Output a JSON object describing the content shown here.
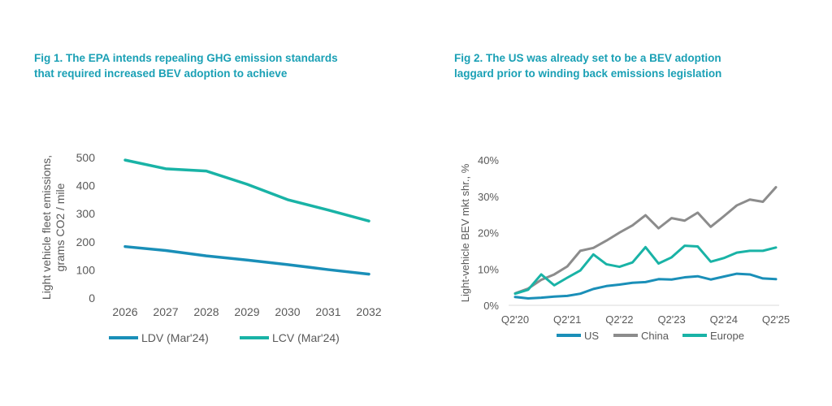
{
  "fig1": {
    "title_line1": "Fig 1. The EPA intends repealing GHG emission standards",
    "title_line2": "that required increased BEV adoption to achieve"
  },
  "fig2": {
    "title_line1": "Fig 2. The US was already set to be a BEV adoption",
    "title_line2": "laggard prior to winding back emissions legislation"
  },
  "chart_data": [
    {
      "type": "line",
      "categories": [
        "2026",
        "2027",
        "2028",
        "2029",
        "2030",
        "2031",
        "2032"
      ],
      "series": [
        {
          "name": "LDV (Mar'24)",
          "color": "#1a8fb8",
          "values": [
            183,
            169,
            150,
            135,
            119,
            101,
            85
          ]
        },
        {
          "name": "LCV (Mar'24)",
          "color": "#19b3a6",
          "values": [
            491,
            460,
            452,
            405,
            350,
            313,
            274
          ]
        }
      ],
      "ylabel_line1": "Light vehicle fleet emissions,",
      "ylabel_line2": "grams CO2 / mile",
      "yticks": [
        "0",
        "100",
        "200",
        "300",
        "400",
        "500"
      ],
      "ylim": [
        0,
        500
      ],
      "grid": false,
      "legend": "bottom"
    },
    {
      "type": "line",
      "xticks": [
        "Q2'20",
        "Q2'21",
        "Q2'22",
        "Q2'23",
        "Q2'24",
        "Q2'25"
      ],
      "x_count": 21,
      "series": [
        {
          "name": "US",
          "color": "#1a8fb8",
          "values": [
            2.3,
            1.9,
            2.1,
            2.4,
            2.6,
            3.2,
            4.5,
            5.3,
            5.7,
            6.2,
            6.4,
            7.2,
            7.1,
            7.7,
            8.0,
            7.1,
            7.9,
            8.7,
            8.5,
            7.4,
            7.2
          ]
        },
        {
          "name": "China",
          "color": "#8c8c8c",
          "values": [
            3.3,
            4.6,
            7.0,
            8.5,
            10.7,
            15.0,
            15.8,
            17.8,
            20.0,
            22.0,
            24.8,
            21.2,
            24.0,
            23.3,
            25.5,
            21.6,
            24.5,
            27.5,
            29.1,
            28.5,
            32.5
          ]
        },
        {
          "name": "Europe",
          "color": "#19b3a6",
          "values": [
            3.2,
            4.3,
            8.5,
            5.5,
            7.6,
            9.6,
            14.0,
            11.3,
            10.6,
            11.8,
            16.0,
            11.5,
            13.2,
            16.4,
            16.2,
            12.0,
            13.0,
            14.5,
            15.0,
            15.0,
            15.9
          ]
        }
      ],
      "ylabel": "Light-vehicle BEV mkt shr., %",
      "yticks": [
        "0%",
        "10%",
        "20%",
        "30%",
        "40%"
      ],
      "ylim": [
        0,
        40
      ],
      "grid": false,
      "legend": "bottom"
    }
  ]
}
